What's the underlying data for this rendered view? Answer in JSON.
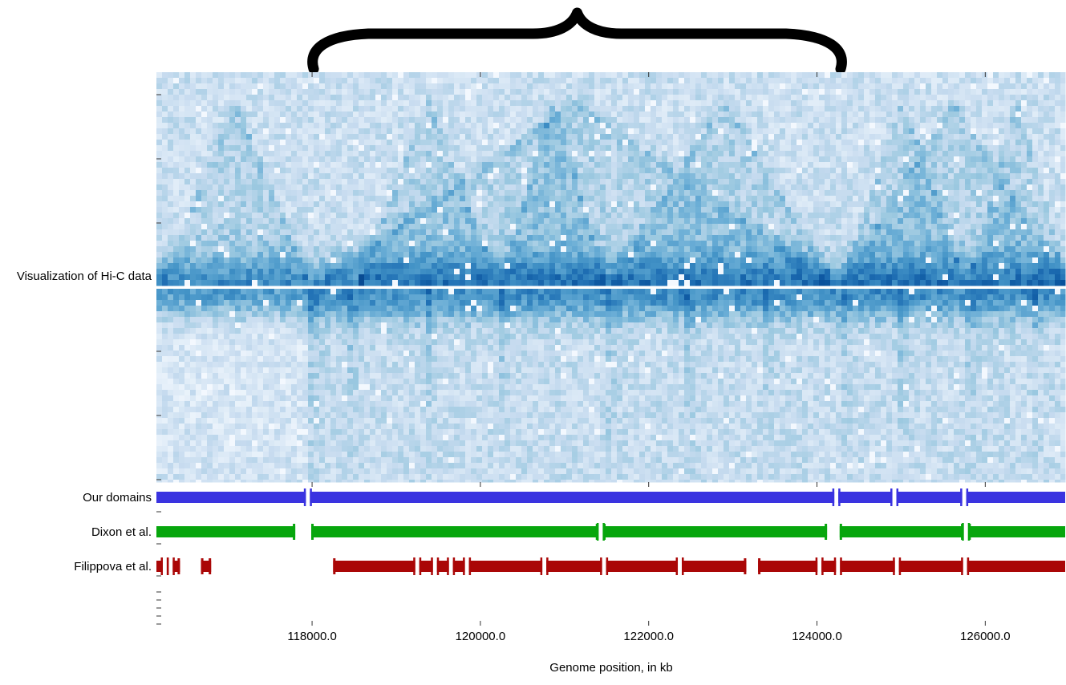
{
  "chart_data": {
    "type": "heatmap",
    "title": "",
    "xlabel": "Genome position, in kb",
    "x_range_kb": [
      116150,
      126950
    ],
    "x_ticks": [
      118000,
      120000,
      122000,
      124000,
      126000
    ],
    "x_tick_labels": [
      "118000.0",
      "120000.0",
      "122000.0",
      "124000.0",
      "126000.0"
    ],
    "heatmap_label": "Visualization of Hi-C data",
    "colormap": "Blues",
    "brace_span_kb": [
      118000,
      124300
    ],
    "tracks": [
      {
        "name": "Our domains",
        "color": "#3a33e0",
        "boundaries_kb": [
          117950,
          124230,
          124920,
          125750
        ]
      },
      {
        "name": "Dixon et al.",
        "color": "#07a60d",
        "domains_kb": [
          [
            116150,
            117800
          ],
          [
            117990,
            121400
          ],
          [
            121460,
            124120
          ],
          [
            124270,
            125740
          ],
          [
            125800,
            126950
          ]
        ],
        "boundaries_kb": [
          121430,
          125770
        ]
      },
      {
        "name": "Filippova et al.",
        "color": "#aa0707",
        "domains_kb": [
          [
            116150,
            116430
          ],
          [
            116680,
            116800
          ],
          [
            118250,
            123160
          ],
          [
            123300,
            126950
          ]
        ],
        "boundaries_kb": [
          116250,
          116320,
          119250,
          119460,
          119650,
          119840,
          120760,
          121470,
          122370,
          124030,
          124250,
          124950,
          125760
        ]
      }
    ]
  }
}
